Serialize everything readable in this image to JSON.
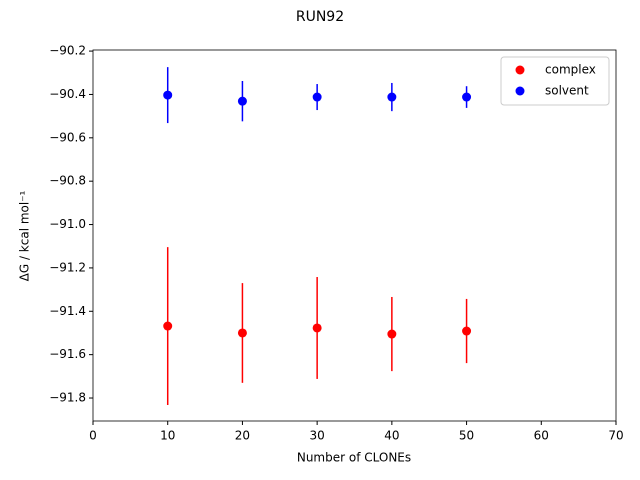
{
  "chart_data": {
    "type": "errorbar",
    "title": "RUN92",
    "xlabel": "Number of CLONEs",
    "ylabel": "ΔG / kcal mol⁻¹",
    "x": [
      10,
      20,
      30,
      40,
      50
    ],
    "series": [
      {
        "name": "complex",
        "color": "#ff0000",
        "values": [
          -91.468,
          -91.5,
          -91.477,
          -91.505,
          -91.491
        ],
        "errors": [
          0.364,
          0.23,
          0.235,
          0.171,
          0.148
        ]
      },
      {
        "name": "solvent",
        "color": "#0000ff",
        "values": [
          -90.403,
          -90.431,
          -90.412,
          -90.412,
          -90.412
        ],
        "errors": [
          0.129,
          0.093,
          0.06,
          0.065,
          0.05
        ]
      }
    ],
    "xlim": [
      0,
      70
    ],
    "xticks": [
      0,
      10,
      20,
      30,
      40,
      50,
      60,
      70
    ],
    "ylim": [
      -91.906,
      -90.195
    ],
    "yticks": [
      {
        "value": -91.8,
        "label": "−91.8"
      },
      {
        "value": -91.6,
        "label": "−91.6"
      },
      {
        "value": -91.4,
        "label": "−91.4"
      },
      {
        "value": -91.2,
        "label": "−91.2"
      },
      {
        "value": -91.0,
        "label": "−91.0"
      },
      {
        "value": -90.8,
        "label": "−90.8"
      },
      {
        "value": -90.6,
        "label": "−90.6"
      },
      {
        "value": -90.4,
        "label": "−90.4"
      },
      {
        "value": -90.2,
        "label": "−90.2"
      }
    ],
    "legend": "upper right",
    "grid": false
  }
}
